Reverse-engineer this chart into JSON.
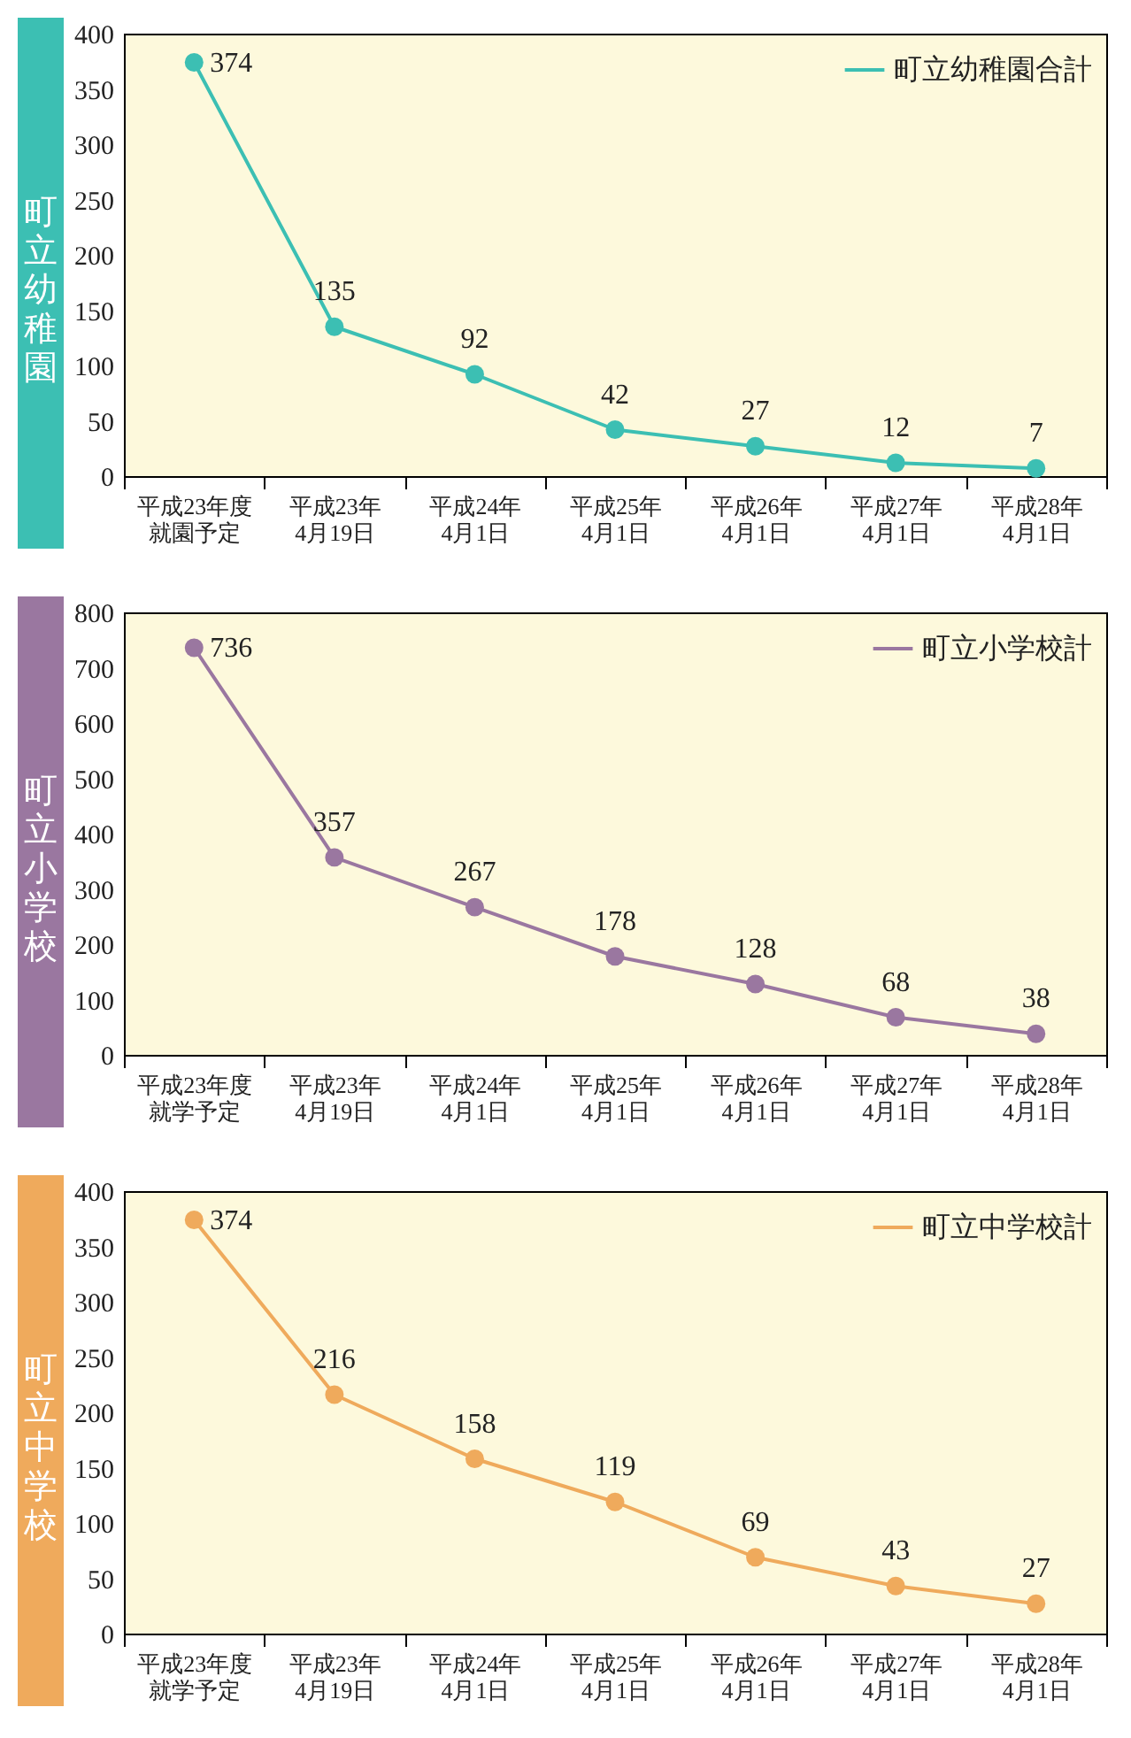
{
  "chart_data": [
    {
      "type": "line",
      "title": "町立幼稚園",
      "categories": [
        "平成23年度就園予定",
        "平成23年4月19日",
        "平成24年4月1日",
        "平成25年4月1日",
        "平成26年4月1日",
        "平成27年4月1日",
        "平成28年4月1日"
      ],
      "series": [
        {
          "name": "町立幼稚園合計",
          "color": "#3cbfb3",
          "values": [
            374,
            135,
            92,
            42,
            27,
            12,
            7
          ]
        }
      ],
      "ylim": [
        0,
        400
      ],
      "yticks": [
        0,
        50,
        100,
        150,
        200,
        250,
        300,
        350,
        400
      ],
      "data_labels": true,
      "legend": "top right",
      "marker": "circle",
      "line_style": "solid",
      "grid": false
    },
    {
      "type": "line",
      "title": "町立小学校",
      "categories": [
        "平成23年度就学予定",
        "平成23年4月19日",
        "平成24年4月1日",
        "平成25年4月1日",
        "平成26年4月1日",
        "平成27年4月1日",
        "平成28年4月1日"
      ],
      "series": [
        {
          "name": "町立小学校計",
          "color": "#9a77a0",
          "values": [
            736,
            357,
            267,
            178,
            128,
            68,
            38
          ]
        }
      ],
      "ylim": [
        0,
        800
      ],
      "yticks": [
        0,
        100,
        200,
        300,
        400,
        500,
        600,
        700,
        800
      ],
      "data_labels": true,
      "legend": "top right",
      "marker": "circle",
      "line_style": "solid",
      "grid": false
    },
    {
      "type": "line",
      "title": "町立中学校",
      "categories": [
        "平成23年度就学予定",
        "平成23年4月19日",
        "平成24年4月1日",
        "平成25年4月1日",
        "平成26年4月1日",
        "平成27年4月1日",
        "平成28年4月1日"
      ],
      "series": [
        {
          "name": "町立中学校計",
          "color": "#efaa5c",
          "values": [
            374,
            216,
            158,
            119,
            69,
            43,
            27
          ]
        }
      ],
      "ylim": [
        0,
        400
      ],
      "yticks": [
        0,
        50,
        100,
        150,
        200,
        250,
        300,
        350,
        400
      ],
      "data_labels": true,
      "legend": "top right",
      "marker": "circle",
      "line_style": "solid",
      "grid": false
    }
  ]
}
